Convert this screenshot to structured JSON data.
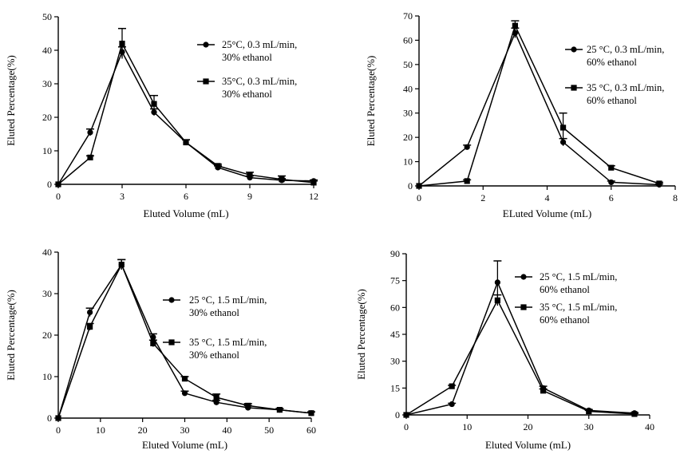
{
  "chart_data": [
    {
      "type": "line",
      "xlabel": "Eluted Volume (mL)",
      "ylabel": "Eluted Percentage(%)",
      "xlim": [
        0,
        12
      ],
      "ylim": [
        0,
        50
      ],
      "xticks": [
        "0",
        "3",
        "6",
        "9",
        "12"
      ],
      "yticks": [
        "0",
        "10",
        "20",
        "30",
        "40",
        "50"
      ],
      "legend_position": "right",
      "series": [
        {
          "name": "25°C, 0.3 mL/min,",
          "name2": "30% ethanol",
          "marker": "circle",
          "x": [
            0,
            1.5,
            3,
            4.5,
            6,
            7.5,
            9,
            10.5,
            12
          ],
          "y": [
            0,
            15.5,
            39.5,
            21.5,
            12.5,
            5,
            2,
            1.2,
            1
          ],
          "err": [
            0,
            1,
            1.5,
            1,
            0.8,
            0.5,
            0.5,
            0.5,
            0.3
          ]
        },
        {
          "name": "35°C, 0.3 mL/min,",
          "name2": "30% ethanol",
          "marker": "square",
          "x": [
            0,
            1.5,
            3,
            4.5,
            6,
            7.5,
            9,
            10.5,
            12
          ],
          "y": [
            0,
            8,
            42,
            24,
            12.5,
            5.5,
            2.8,
            1.5,
            0.5
          ],
          "err": [
            0,
            0.5,
            4.5,
            2.5,
            0.8,
            0.5,
            0.8,
            1,
            0.5
          ]
        }
      ]
    },
    {
      "type": "line",
      "xlabel": "ELuted Volume (mL)",
      "ylabel": "Eluted Percentage(%)",
      "xlim": [
        0,
        8
      ],
      "ylim": [
        0,
        70
      ],
      "xticks": [
        "0",
        "2",
        "4",
        "6",
        "8"
      ],
      "yticks": [
        "0",
        "10",
        "20",
        "30",
        "40",
        "50",
        "60",
        "70"
      ],
      "legend_position": "right",
      "series": [
        {
          "name": "25 °C, 0.3 mL/min,",
          "name2": "60% ethanol",
          "marker": "circle",
          "x": [
            0,
            1.5,
            3,
            4.5,
            6,
            7.5
          ],
          "y": [
            0,
            16,
            63,
            18,
            1.5,
            0.5
          ],
          "err": [
            0,
            0.8,
            2,
            1.5,
            0.5,
            0.3
          ]
        },
        {
          "name": "35 °C, 0.3 mL/min,",
          "name2": "60% ethanol",
          "marker": "square",
          "x": [
            0,
            1.5,
            3,
            4.5,
            6,
            7.5
          ],
          "y": [
            0,
            2,
            66,
            24,
            7.5,
            1
          ],
          "err": [
            0,
            0.5,
            2,
            6,
            0.8,
            0.5
          ]
        }
      ]
    },
    {
      "type": "line",
      "xlabel": "Eluted Volume (mL)",
      "ylabel": "Eluted Percentage(%)",
      "xlim": [
        0,
        60
      ],
      "ylim": [
        0,
        40
      ],
      "xticks": [
        "0",
        "10",
        "20",
        "30",
        "40",
        "50",
        "60"
      ],
      "yticks": [
        "0",
        "10",
        "20",
        "30",
        "40"
      ],
      "legend_position": "right",
      "series": [
        {
          "name": "25 °C, 1.5 mL/min,",
          "name2": "30% ethanol",
          "marker": "circle",
          "x": [
            0,
            7.5,
            15,
            22.5,
            30,
            37.5,
            45,
            52.5,
            60
          ],
          "y": [
            0,
            25.5,
            37,
            19.5,
            6,
            3.8,
            2.5,
            2,
            1.2
          ],
          "err": [
            0,
            1,
            1.2,
            0.8,
            0.5,
            0.5,
            0.5,
            0.3,
            0.3
          ]
        },
        {
          "name": "35 °C, 1.5 mL/min,",
          "name2": "30% ethanol",
          "marker": "square",
          "x": [
            0,
            7.5,
            15,
            22.5,
            30,
            37.5,
            45,
            52.5,
            60
          ],
          "y": [
            0,
            22,
            37,
            18,
            9.5,
            5,
            3,
            2,
            1.2
          ],
          "err": [
            0,
            0.8,
            1.2,
            0.8,
            0.5,
            0.8,
            0.5,
            0.3,
            0.3
          ]
        }
      ]
    },
    {
      "type": "line",
      "xlabel": "Eluted Volume (mL)",
      "ylabel": "Eluted Percentage(%)",
      "xlim": [
        0,
        40
      ],
      "ylim": [
        0,
        90
      ],
      "xticks": [
        "0",
        "10",
        "20",
        "30",
        "40"
      ],
      "yticks": [
        "0",
        "15",
        "30",
        "45",
        "60",
        "75",
        "90"
      ],
      "legend_position": "top-right",
      "series": [
        {
          "name": "25 °C, 1.5 mL/min,",
          "name2": "60% ethanol",
          "marker": "circle",
          "x": [
            0,
            7.5,
            15,
            22.5,
            30,
            37.5
          ],
          "y": [
            0,
            6,
            74,
            15,
            2.5,
            1
          ],
          "err": [
            0,
            0.5,
            12,
            1,
            0.5,
            0.3
          ]
        },
        {
          "name": "35 °C, 1.5 mL/min,",
          "name2": "60% ethanol",
          "marker": "square",
          "x": [
            0,
            7.5,
            15,
            22.5,
            30,
            37.5
          ],
          "y": [
            0,
            16,
            64,
            13.5,
            2,
            0.5
          ],
          "err": [
            0,
            0.5,
            3,
            1,
            0.5,
            0.3
          ]
        }
      ]
    }
  ]
}
